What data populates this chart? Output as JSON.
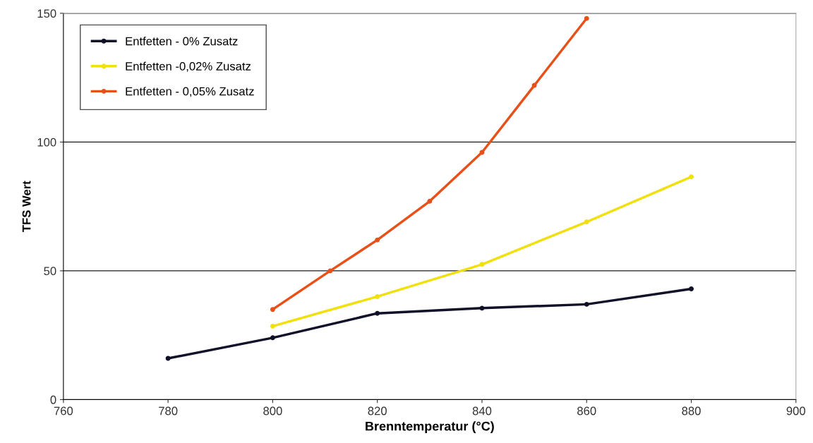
{
  "chart_data": {
    "type": "line",
    "xlabel": "Brenntemperatur (°C)",
    "ylabel": "TFS Wert",
    "xlim": [
      760,
      900
    ],
    "xticks": [
      760,
      780,
      800,
      820,
      840,
      860,
      880,
      900
    ],
    "ylim": [
      0,
      150
    ],
    "yticks": [
      0,
      50,
      100,
      150
    ],
    "grid": "y",
    "legend": "top left",
    "marker": "circle",
    "series": [
      {
        "name": "Entfetten - 0% Zusatz",
        "color": "#101028",
        "x": [
          780,
          800,
          820,
          840,
          860,
          880
        ],
        "values": [
          16,
          24,
          33.5,
          35.5,
          37,
          43
        ]
      },
      {
        "name": "Entfetten -0,02% Zusatz",
        "color": "#f0e010",
        "x": [
          800,
          820,
          840,
          860,
          880
        ],
        "values": [
          28.5,
          40,
          52.5,
          69,
          86.5
        ]
      },
      {
        "name": "Entfetten - 0,05% Zusatz",
        "color": "#e8501a",
        "x": [
          800,
          811,
          820,
          830,
          840,
          850,
          860
        ],
        "values": [
          35,
          50,
          62,
          77,
          96,
          122,
          148
        ]
      }
    ]
  }
}
